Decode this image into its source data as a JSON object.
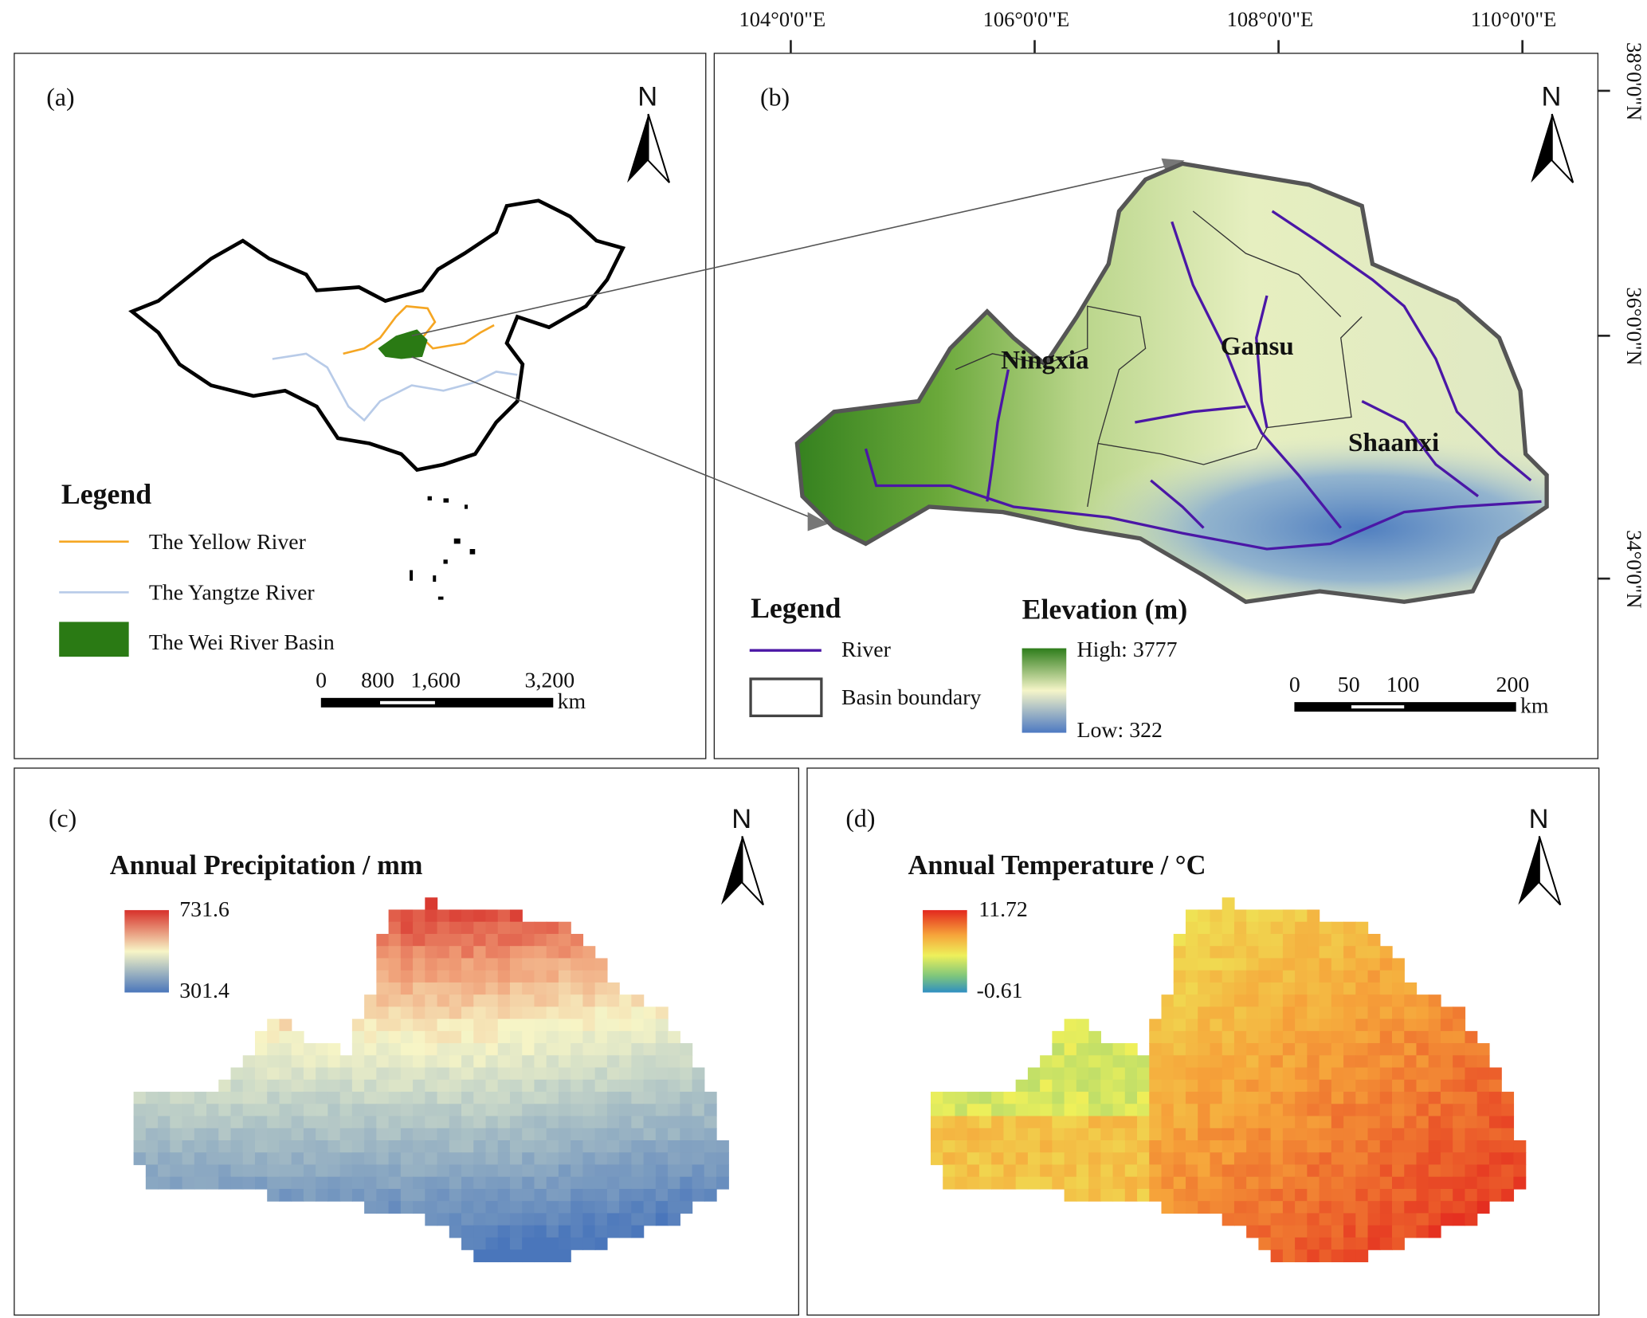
{
  "coords": {
    "lon": [
      "104°0'0\"E",
      "106°0'0\"E",
      "108°0'0\"E",
      "110°0'0\"E"
    ],
    "lat": [
      "38°0'0\"N",
      "36°0'0\"N",
      "34°0'0\"N"
    ]
  },
  "north_label": "N",
  "panel_a": {
    "label": "(a)",
    "legend_title": "Legend",
    "legend": [
      "The Yellow River",
      "The Yangtze River",
      "The Wei River Basin"
    ],
    "scale": [
      "0",
      "800",
      "1,600",
      "3,200"
    ],
    "scale_unit": "km",
    "colors": {
      "yellow_river": "#f5a623",
      "yangtze": "#b8cbe8",
      "wei_basin": "#2a7a14"
    }
  },
  "panel_b": {
    "label": "(b)",
    "provinces": [
      "Ningxia",
      "Gansu",
      "Shaanxi"
    ],
    "legend_title": "Legend",
    "legend": [
      "River",
      "Basin boundary"
    ],
    "elevation_title": "Elevation (m)",
    "elev_high": "High: 3777",
    "elev_low": "Low: 322",
    "scale": [
      "0",
      "50",
      "100",
      "200"
    ],
    "scale_unit": "km",
    "colors": {
      "river": "#4b17a6"
    }
  },
  "panel_c": {
    "label": "(c)",
    "title": "Annual Precipitation / mm",
    "max": "731.6",
    "min": "301.4"
  },
  "panel_d": {
    "label": "(d)",
    "title": "Annual Temperature / °C",
    "max": "11.72",
    "min": "-0.61"
  }
}
